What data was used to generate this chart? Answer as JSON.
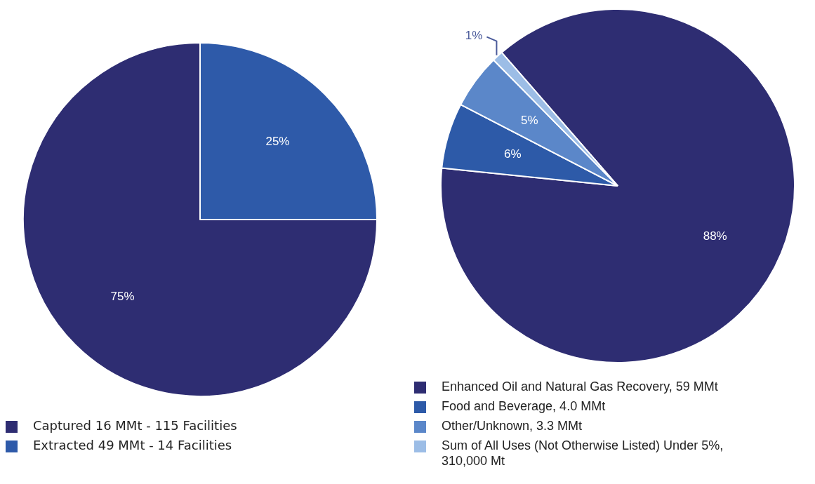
{
  "chart_data": [
    {
      "type": "pie",
      "categories": [
        "Captured 16 MMt - 115 Facilities",
        "Extracted 49 MMt - 14 Facilities"
      ],
      "values": [
        75,
        25
      ],
      "colors": [
        "#2e2d72",
        "#2e5aa9"
      ],
      "value_labels": [
        "75%",
        "25%"
      ],
      "legend": "bottom left"
    },
    {
      "type": "pie",
      "categories": [
        "Enhanced Oil and Natural Gas Recovery, 59 MMt",
        "Food and Beverage, 4.0 MMt",
        "Other/Unknown, 3.3 MMt",
        "Sum of All Uses (Not Otherwise Listed) Under 5%, 310,000 Mt"
      ],
      "values": [
        88,
        6,
        5,
        1
      ],
      "colors": [
        "#2e2d72",
        "#2d5aa8",
        "#5b87c9",
        "#9cbde6"
      ],
      "value_labels": [
        "88%",
        "6%",
        "5%",
        "1%"
      ],
      "legend": "bottom"
    }
  ]
}
